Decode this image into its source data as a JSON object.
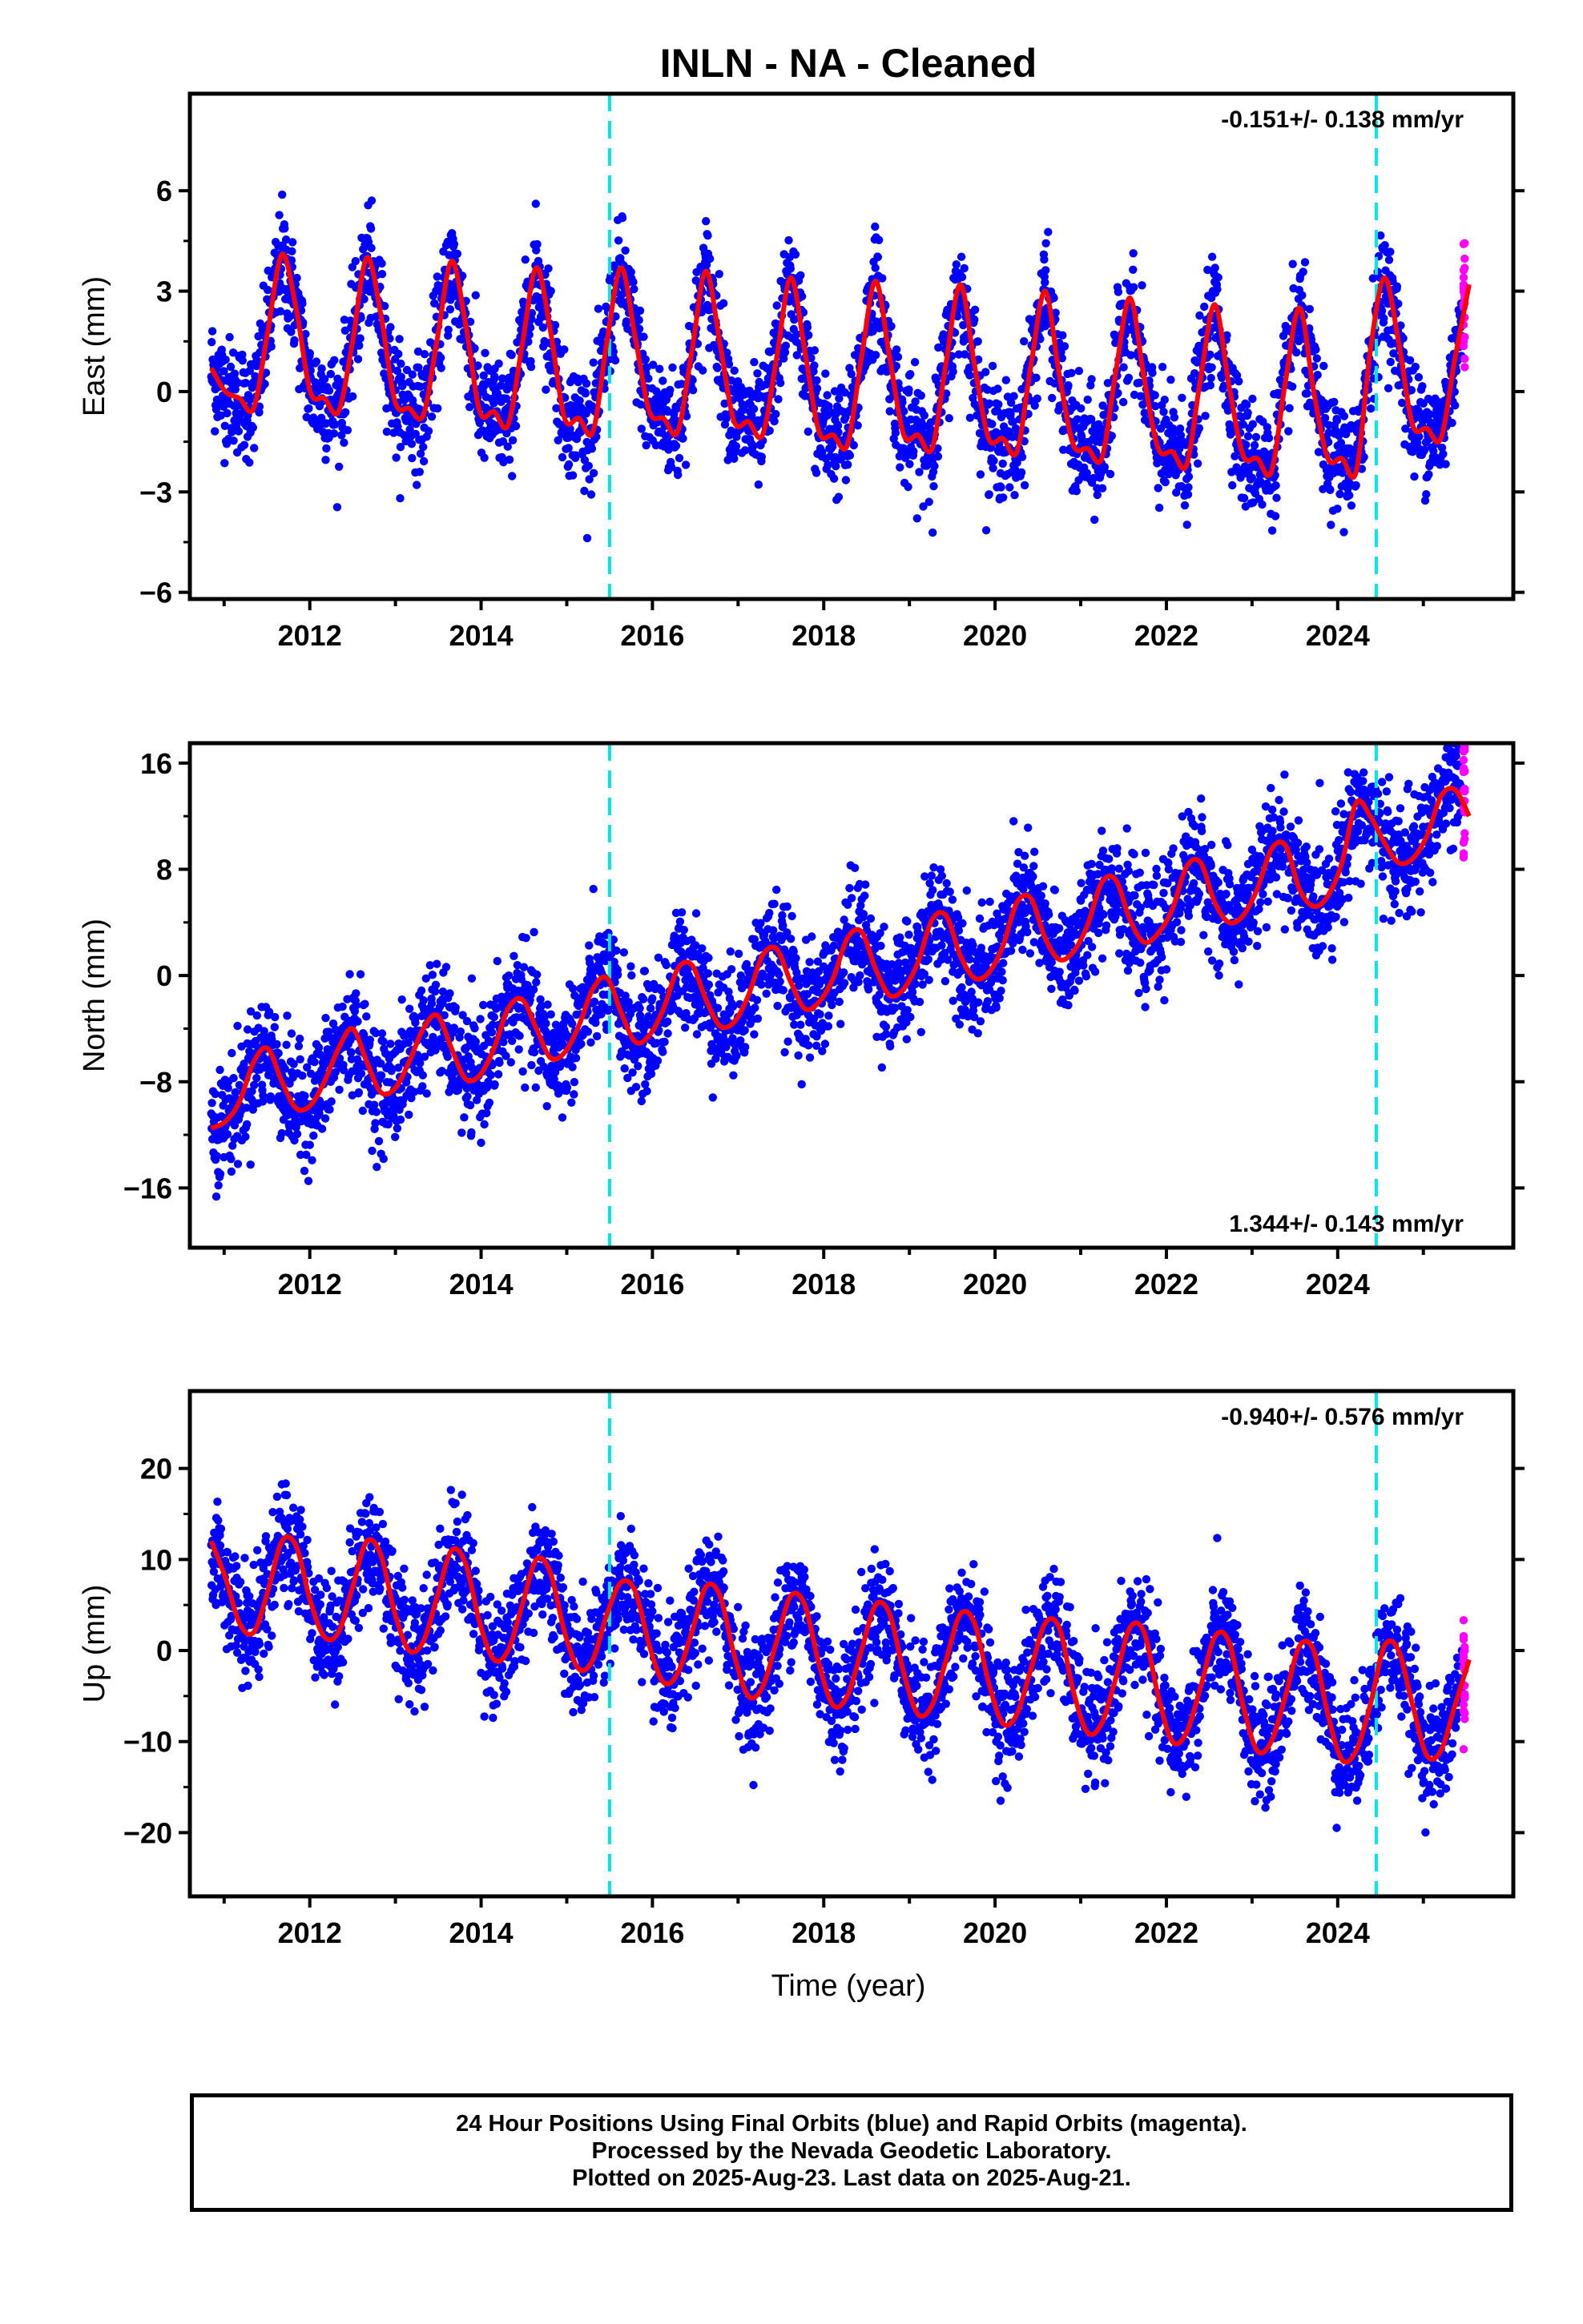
{
  "title": "INLN  - NA - Cleaned",
  "xlabel": "Time (year)",
  "footer": {
    "line1": "24 Hour Positions Using Final Orbits (blue) and Rapid Orbits (magenta).",
    "line2": "Processed by the Nevada Geodetic Laboratory.",
    "line3": "Plotted on 2025-Aug-23. Last data on 2025-Aug-21."
  },
  "colors": {
    "final_orbits": "#0000ff",
    "rapid_orbits": "#ff00ff",
    "model": "#ff0000",
    "steps": "#00e5e5"
  },
  "chart_data": [
    {
      "type": "scatter",
      "ylabel": "East (mm)",
      "rate_label": "-0.151+/- 0.138 mm/yr",
      "rate_position": "top-right",
      "xlim": [
        2010.6,
        2026.05
      ],
      "ylim": [
        -6.2,
        8.9
      ],
      "yticks": [
        -6,
        -3,
        0,
        3,
        6
      ],
      "ytick_labels": [
        "−6",
        "−3",
        "0",
        "3",
        "6"
      ],
      "xticks": [
        2012,
        2014,
        2016,
        2018,
        2020,
        2022,
        2024
      ],
      "xtick_labels": [
        "2012",
        "2014",
        "2016",
        "2018",
        "2020",
        "2022",
        "2024"
      ],
      "step_lines": [
        2015.5,
        2024.45
      ],
      "series": [
        {
          "values": [
            0.7,
            0.0,
            -0.2,
            -0.5,
            1.8,
            4.1,
            2.5,
            0.0,
            -0.2,
            -0.6,
            1.5,
            4.0,
            2.3,
            -0.3,
            -0.5,
            -0.7,
            1.6,
            3.9,
            2.0,
            -0.6,
            -0.6,
            -1.0,
            1.4,
            3.7,
            1.8,
            -0.8,
            -0.8,
            -1.2,
            1.5,
            3.7,
            1.6,
            -0.6,
            -0.8,
            -1.2,
            1.2,
            3.6,
            1.4,
            -0.9,
            -0.9,
            -1.3,
            1.0,
            3.4,
            1.2,
            -1.2,
            -1.3,
            -1.6,
            1.0,
            3.3,
            1.0,
            -1.3,
            -1.3,
            -1.7,
            0.9,
            3.2,
            0.8,
            -1.4,
            -1.4,
            -1.8,
            0.8,
            3.0,
            0.5,
            -1.6,
            -1.7,
            -2.0,
            0.6,
            2.8,
            0.4,
            -1.7,
            -1.8,
            -2.2,
            0.4,
            2.6,
            0.2,
            -1.9,
            -2.0,
            -2.4,
            0.3,
            2.5,
            0.0,
            -2.0,
            -2.0,
            -2.4,
            1.2,
            3.4,
            1.5,
            -1.0,
            -1.1,
            -1.4,
            1.0,
            3.2
          ]
        }
      ],
      "x_start": 2010.85,
      "x_step": 0.165
    },
    {
      "type": "scatter",
      "ylabel": "North (mm)",
      "rate_label": "1.344+/- 0.143 mm/yr",
      "rate_position": "bottom-right",
      "xlim": [
        2010.6,
        2026.05
      ],
      "ylim": [
        -20.5,
        17.5
      ],
      "yticks": [
        -16,
        -8,
        0,
        8,
        16
      ],
      "ytick_labels": [
        "−16",
        "−8",
        "0",
        "8",
        "16"
      ],
      "xticks": [
        2012,
        2014,
        2016,
        2018,
        2020,
        2022,
        2024
      ],
      "xtick_labels": [
        "2012",
        "2014",
        "2016",
        "2018",
        "2020",
        "2022",
        "2024"
      ],
      "step_lines": [
        2015.5,
        2024.45
      ],
      "series": [
        {
          "values": [
            -11.5,
            -11.0,
            -9.5,
            -6.5,
            -5.5,
            -8.0,
            -10.0,
            -9.8,
            -8.0,
            -5.5,
            -4.0,
            -6.5,
            -8.8,
            -8.5,
            -6.5,
            -4.0,
            -3.0,
            -5.5,
            -7.8,
            -7.5,
            -5.5,
            -2.5,
            -1.8,
            -4.0,
            -6.2,
            -5.8,
            -3.8,
            -1.0,
            -0.2,
            -2.8,
            -5.0,
            -4.5,
            -2.5,
            0.5,
            0.8,
            -1.8,
            -3.8,
            -3.5,
            -1.5,
            1.5,
            2.0,
            -0.5,
            -2.5,
            -2.0,
            -0.2,
            2.8,
            3.3,
            0.5,
            -1.5,
            -1.0,
            1.0,
            4.2,
            4.5,
            1.5,
            -0.2,
            0.2,
            2.2,
            5.5,
            5.8,
            2.8,
            1.2,
            1.8,
            3.8,
            7.0,
            7.2,
            4.2,
            2.5,
            3.2,
            5.0,
            8.2,
            8.5,
            5.5,
            4.0,
            4.5,
            6.5,
            9.5,
            9.8,
            6.5,
            5.2,
            6.0,
            8.5,
            13.0,
            12.0,
            10.0,
            8.5,
            8.8,
            10.5,
            13.5,
            14.0,
            12.0
          ]
        }
      ],
      "x_start": 2010.85,
      "x_step": 0.165
    },
    {
      "type": "scatter",
      "ylabel": "Up (mm)",
      "rate_label": "-0.940+/- 0.576 mm/yr",
      "rate_position": "top-right",
      "xlim": [
        2010.6,
        2026.05
      ],
      "ylim": [
        -27,
        28.5
      ],
      "yticks": [
        -20,
        -10,
        0,
        10,
        20
      ],
      "ytick_labels": [
        "−20",
        "−10",
        "0",
        "10",
        "20"
      ],
      "xticks": [
        2012,
        2014,
        2016,
        2018,
        2020,
        2022,
        2024
      ],
      "xtick_labels": [
        "2012",
        "2014",
        "2016",
        "2018",
        "2020",
        "2022",
        "2024"
      ],
      "step_lines": [
        2015.5,
        2024.45
      ],
      "series": [
        {
          "values": [
            12.0,
            8.0,
            3.0,
            2.0,
            6.5,
            12.0,
            11.5,
            5.5,
            1.5,
            2.0,
            7.0,
            12.0,
            10.5,
            4.0,
            0.0,
            1.0,
            6.0,
            11.0,
            9.5,
            3.0,
            -1.0,
            0.0,
            5.0,
            10.0,
            8.5,
            2.0,
            -2.0,
            -1.0,
            4.0,
            7.5,
            6.5,
            0.5,
            -3.5,
            -2.5,
            2.0,
            7.0,
            6.0,
            -0.5,
            -5.0,
            -4.0,
            1.0,
            6.0,
            5.0,
            -1.5,
            -6.0,
            -5.0,
            0.0,
            5.0,
            4.0,
            -2.5,
            -7.0,
            -6.0,
            -1.0,
            4.0,
            3.0,
            -3.5,
            -8.0,
            -7.0,
            -2.0,
            3.0,
            2.5,
            -4.5,
            -9.0,
            -8.0,
            -3.0,
            2.5,
            2.0,
            -5.0,
            -10.0,
            -9.0,
            -4.0,
            1.5,
            1.0,
            -6.0,
            -11.0,
            -10.0,
            -5.0,
            0.5,
            0.0,
            -7.0,
            -12.0,
            -11.0,
            -6.0,
            0.5,
            0.0,
            -6.0,
            -11.5,
            -11.0,
            -6.0,
            -1.0
          ]
        }
      ],
      "x_start": 2010.85,
      "x_step": 0.165
    }
  ]
}
